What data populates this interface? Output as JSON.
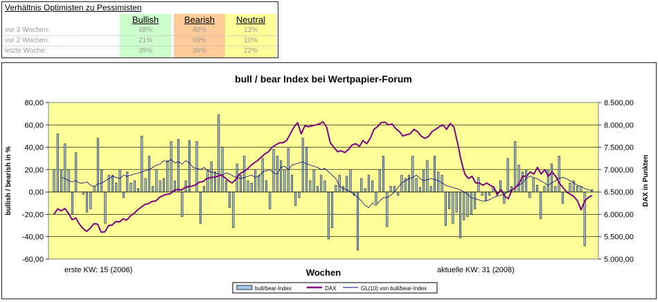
{
  "summary": {
    "title": "Verhältnis Optimisten zu Pessimisten",
    "columns": [
      {
        "label": "Bullish",
        "color": "#ccffcc"
      },
      {
        "label": "Bearish",
        "color": "#ffcc99"
      },
      {
        "label": "Neutral",
        "color": "#ffff99"
      }
    ],
    "rows": [
      {
        "label": "vor 3 Wochen:",
        "values": [
          "48%",
          "40%",
          "13%"
        ]
      },
      {
        "label": "vor 2 Wochen:",
        "values": [
          "21%",
          "69%",
          "10%"
        ]
      },
      {
        "label": "letzte Woche:",
        "values": [
          "39%",
          "39%",
          "22%"
        ]
      }
    ]
  },
  "chart_data": {
    "type": "bar",
    "title": "bull / bear Index bei Wertpapier-Forum",
    "xlabel": "Wochen",
    "ylabel": "bullish / bearish in %",
    "y2label": "DAX in Punkten",
    "x_note_left": "erste KW: 15 (2006)",
    "x_note_right": "aktuelle KW: 31 (2008)",
    "ylim": [
      -60,
      80
    ],
    "y2lim": [
      5000,
      8500
    ],
    "yticks": [
      "-60,00",
      "-40,00",
      "-20,00",
      "0,00",
      "20,00",
      "40,00",
      "60,00",
      "80,00"
    ],
    "y2ticks": [
      "5.000,00",
      "5.500,00",
      "6.000,00",
      "6.500,00",
      "7.000,00",
      "7.500,00",
      "8.000,00",
      "8.500,00"
    ],
    "plot_bg": "#ffff99",
    "grid": true,
    "legend_position": "bottom",
    "series": [
      {
        "name": "bull/bear-Index",
        "kind": "bar",
        "color": "#a6caf0",
        "values": [
          20,
          52,
          20,
          43,
          20,
          -20,
          35,
          0,
          -2,
          -18,
          -15,
          5,
          48,
          20,
          -28,
          15,
          15,
          8,
          20,
          -5,
          18,
          8,
          10,
          3,
          50,
          12,
          32,
          5,
          20,
          10,
          12,
          28,
          45,
          10,
          47,
          -22,
          10,
          46,
          0,
          45,
          -28,
          5,
          20,
          27,
          18,
          69,
          40,
          10,
          -14,
          -32,
          25,
          15,
          32,
          10,
          8,
          20,
          15,
          30,
          10,
          -15,
          38,
          32,
          28,
          20,
          39,
          15,
          -12,
          -5,
          48,
          40,
          10,
          20,
          5,
          15,
          10,
          -42,
          -32,
          6,
          15,
          5,
          14,
          20,
          -3,
          -52,
          12,
          3,
          15,
          10,
          -10,
          20,
          32,
          -31,
          5,
          5,
          -3,
          15,
          12,
          15,
          32,
          12,
          4,
          20,
          28,
          5,
          32,
          18,
          15,
          -30,
          -15,
          -28,
          -18,
          -41,
          -25,
          -22,
          -20,
          -15,
          13,
          -3,
          -8,
          -3,
          5,
          -3,
          10,
          -10,
          30,
          5,
          45,
          24,
          18,
          20,
          -5,
          12,
          6,
          -24,
          5,
          20,
          25,
          5,
          32,
          -10,
          0,
          8,
          10,
          5,
          5,
          -48,
          0,
          2
        ],
        "note": "weekly values estimated from bar heights"
      },
      {
        "name": "DAX",
        "kind": "line",
        "axis": "right",
        "color": "#800080",
        "values": [
          6000,
          6120,
          6080,
          6130,
          6020,
          5880,
          5920,
          5780,
          5680,
          5620,
          5690,
          5790,
          5780,
          5600,
          5610,
          5750,
          5760,
          5840,
          5830,
          5900,
          5870,
          5960,
          6020,
          6100,
          6160,
          6220,
          6240,
          6290,
          6300,
          6380,
          6420,
          6450,
          6460,
          6530,
          6560,
          6540,
          6600,
          6620,
          6630,
          6660,
          6720,
          6730,
          6800,
          6820,
          6830,
          6850,
          6880,
          6820,
          6750,
          6700,
          6780,
          6900,
          6950,
          7000,
          7080,
          7150,
          7200,
          7280,
          7350,
          7400,
          7500,
          7550,
          7600,
          7600,
          7650,
          7800,
          7950,
          8050,
          7800,
          7980,
          7960,
          7980,
          8000,
          8020,
          8070,
          7950,
          7600,
          7500,
          7400,
          7420,
          7380,
          7450,
          7550,
          7580,
          7520,
          7650,
          7580,
          7700,
          7900,
          7960,
          8050,
          8060,
          8000,
          8020,
          7920,
          7850,
          7750,
          7780,
          7800,
          7900,
          7850,
          7750,
          7700,
          7740,
          7850,
          7900,
          7960,
          8000,
          7900,
          8030,
          7950,
          7600,
          7200,
          6900,
          6800,
          6850,
          6700,
          6700,
          6650,
          6700,
          6650,
          6600,
          6450,
          6550,
          6400,
          6350,
          6550,
          6600,
          6700,
          6850,
          6850,
          6950,
          6900,
          7050,
          6900,
          7000,
          6850,
          6950,
          6850,
          6700,
          6600,
          6500,
          6450,
          6400,
          6300,
          6100,
          6300,
          6380,
          6420
        ]
      },
      {
        "name": "GL(10) von bull/bear-Index",
        "kind": "line",
        "color": "#000080",
        "values": [
          13,
          12,
          10,
          9,
          10,
          8,
          8,
          9,
          6,
          5,
          7,
          8,
          10,
          12,
          14,
          13,
          12,
          15,
          14,
          15,
          16,
          17,
          18,
          19,
          20,
          22,
          24,
          25,
          28,
          27,
          29,
          26,
          27,
          25,
          28,
          26,
          22,
          21,
          20,
          22,
          19,
          18,
          17,
          16,
          15,
          17,
          16,
          14,
          13,
          12,
          13,
          14,
          15,
          13,
          14,
          18,
          19,
          20,
          17,
          16,
          22,
          23,
          20,
          24,
          25,
          26,
          27,
          25,
          24,
          23,
          22,
          20,
          21,
          18,
          15,
          12,
          5,
          3,
          2,
          0,
          -2,
          -5,
          -8,
          -12,
          -14,
          -10,
          -12,
          -8,
          -5,
          -5,
          -3,
          0,
          4,
          8,
          10,
          12,
          13,
          15,
          12,
          10,
          11,
          12,
          11,
          10,
          8,
          6,
          5,
          4,
          3,
          2,
          0,
          -2,
          -5,
          -6,
          -7,
          -8,
          -8,
          -7,
          -5,
          -4,
          -3,
          -2,
          0,
          2,
          4,
          6,
          8,
          12,
          14,
          13,
          12,
          10,
          8,
          6,
          8,
          10,
          12,
          13,
          12,
          10,
          8,
          6,
          5,
          3,
          2,
          1
        ]
      }
    ]
  }
}
